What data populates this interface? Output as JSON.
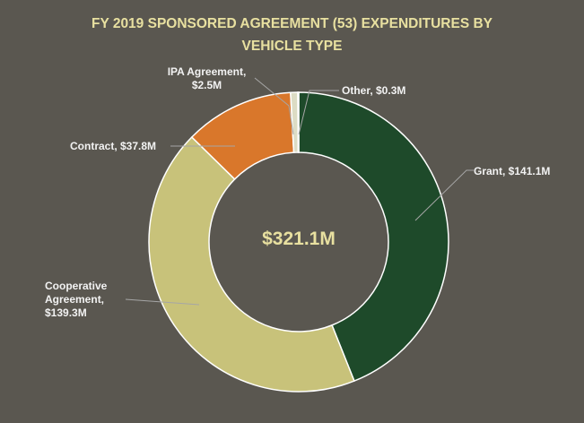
{
  "chart_data": {
    "type": "donut",
    "title": "FY 2019 SPONSORED AGREEMENT (53) EXPENDITURES BY VEHICLE TYPE",
    "categories": [
      "Grant",
      "Cooperative Agreement",
      "Contract",
      "IPA Agreement",
      "Other"
    ],
    "values": [
      141.1,
      139.3,
      37.8,
      2.5,
      0.3
    ],
    "value_labels": [
      "Grant, $141.1M",
      "Cooperative Agreement, $139.3M",
      "Contract, $37.8M",
      "IPA Agreement, $2.5M",
      "Other, $0.3M"
    ],
    "colors": [
      "#1e4a2a",
      "#c8c27a",
      "#d9772b",
      "#dcdcc4",
      "#1a5256"
    ],
    "total": 321.1,
    "total_label": "$321.1M"
  }
}
